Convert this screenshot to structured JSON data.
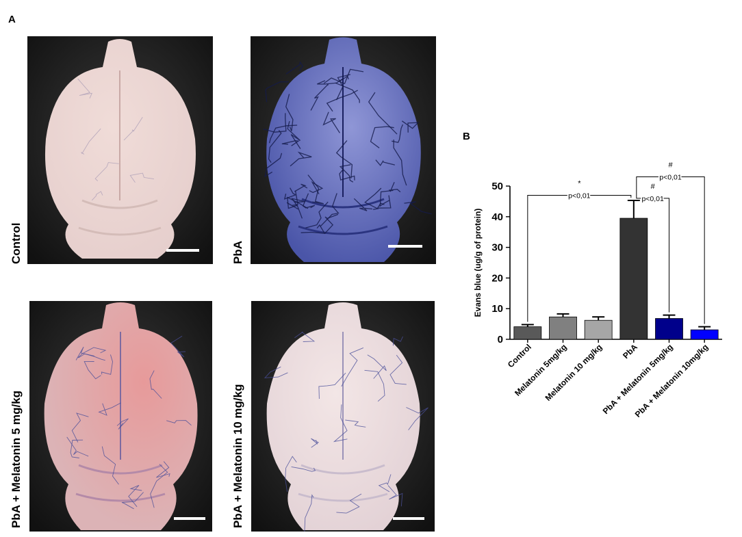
{
  "panel_a": {
    "letter": "A",
    "photos": [
      {
        "label": "Control",
        "tint": "#e6cfcd",
        "vein": "#8a7fa8",
        "veins": "sparse"
      },
      {
        "label": "PbA",
        "tint": "#4a55a8",
        "vein": "#141a4a",
        "veins": "dense"
      },
      {
        "label": "PbA + Melatonin 5 mg/kg",
        "tint": "#dcb3b6",
        "vein": "#4a4f9a",
        "veins": "medium"
      },
      {
        "label": "PbA + Melatonin 10 mg/kg",
        "tint": "#e3d2d6",
        "vein": "#4a4f9a",
        "veins": "medium"
      }
    ]
  },
  "chart_data": {
    "panel_letter": "B",
    "type": "bar",
    "ylabel": "Evans blue (ug/g of protein)",
    "ylim": [
      0,
      50
    ],
    "yticks": [
      0,
      10,
      20,
      30,
      40,
      50
    ],
    "categories": [
      "Control",
      "Melatonin 5mg/kg",
      "Melatonin 10 mg/kg",
      "PbA",
      "PbA + Melatonin 5mg/kg",
      "PbA + Melatonin 10mg/kg"
    ],
    "values": [
      4.1,
      7.3,
      6.2,
      39.5,
      6.8,
      3.1
    ],
    "errors": [
      0.7,
      1.0,
      1.1,
      5.8,
      1.1,
      1.0
    ],
    "colors": [
      "#595959",
      "#808080",
      "#a6a6a6",
      "#333333",
      "#00008b",
      "#0000ff"
    ],
    "annotations": [
      {
        "from": 0,
        "to": 3,
        "symbol": "*",
        "text": "p<0,01",
        "level": 47
      },
      {
        "from": 3,
        "to": 4,
        "symbol": "#",
        "text": "p<0,01",
        "level": 46
      },
      {
        "from": 3,
        "to": 5,
        "symbol": "#",
        "text": "p<0,01",
        "level": 53
      }
    ]
  }
}
